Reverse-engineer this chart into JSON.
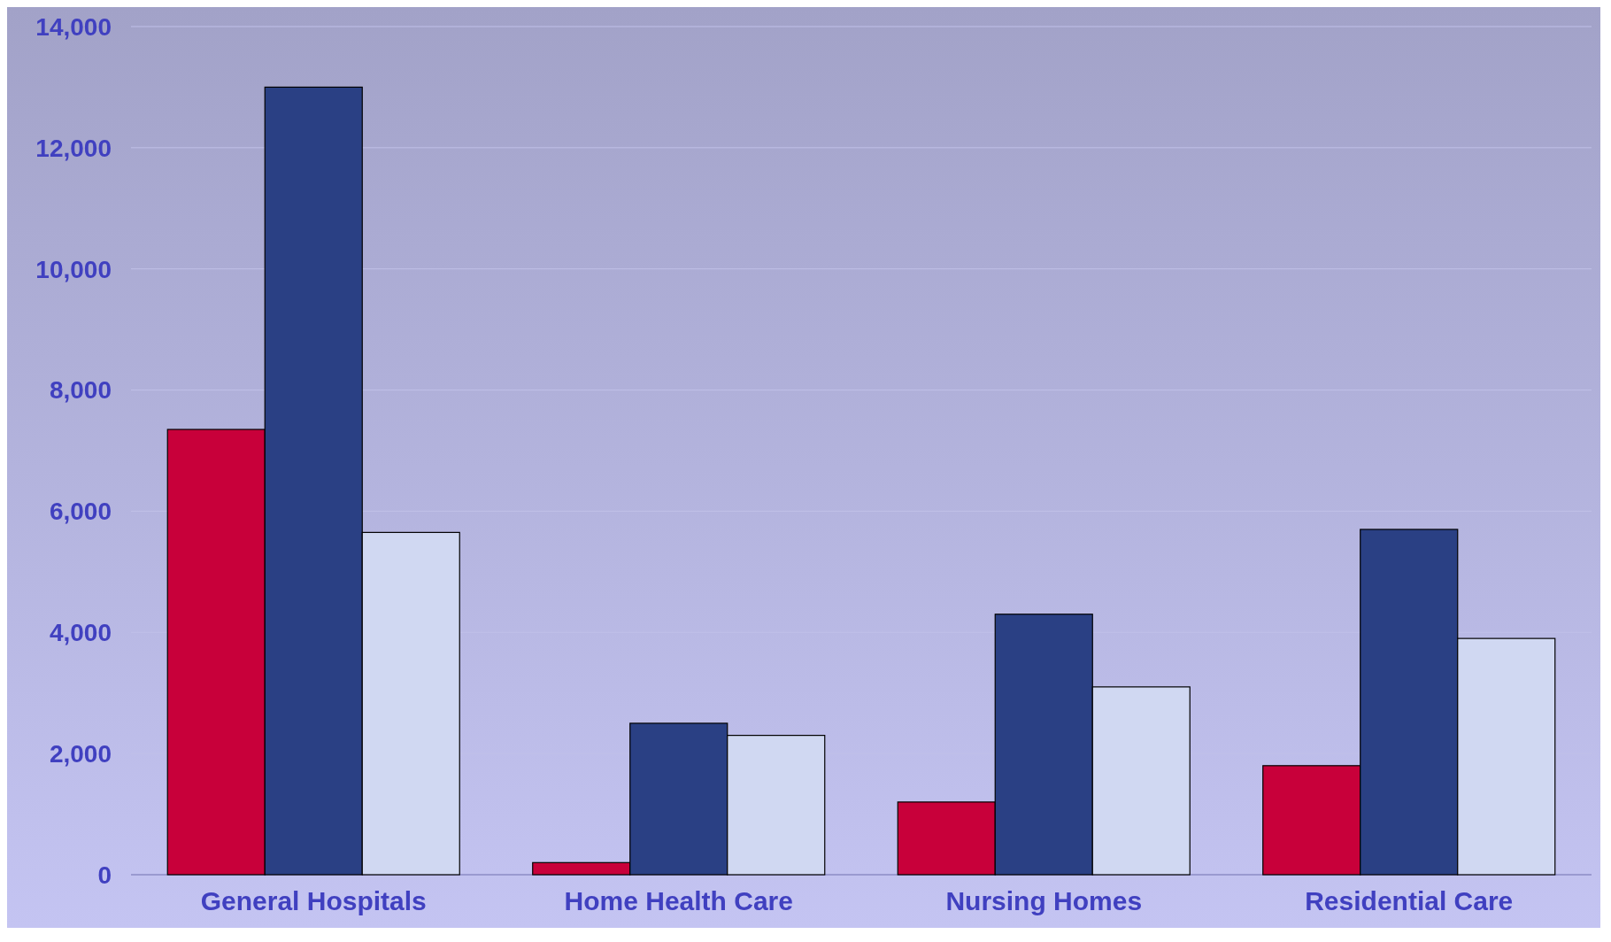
{
  "chart_data": {
    "type": "bar",
    "categories": [
      "General Hospitals",
      "Home Health Care",
      "Nursing Homes",
      "Residential Care"
    ],
    "series": [
      {
        "color": "#c8003a",
        "values": [
          7350,
          200,
          1200,
          1800
        ]
      },
      {
        "color": "#2a4084",
        "values": [
          13000,
          2500,
          4300,
          5700
        ]
      },
      {
        "color": "#d0d8f2",
        "values": [
          5650,
          2300,
          3100,
          3900
        ]
      }
    ],
    "ylim": [
      0,
      14000
    ],
    "yticks": [
      {
        "value": 0,
        "label": "0"
      },
      {
        "value": 2000,
        "label": "2,000"
      },
      {
        "value": 4000,
        "label": "4,000"
      },
      {
        "value": 6000,
        "label": "6,000"
      },
      {
        "value": 8000,
        "label": "8,000"
      },
      {
        "value": 10000,
        "label": "10,000"
      },
      {
        "value": 12000,
        "label": "12,000"
      },
      {
        "value": 14000,
        "label": "14,000"
      }
    ],
    "grid": "y"
  }
}
